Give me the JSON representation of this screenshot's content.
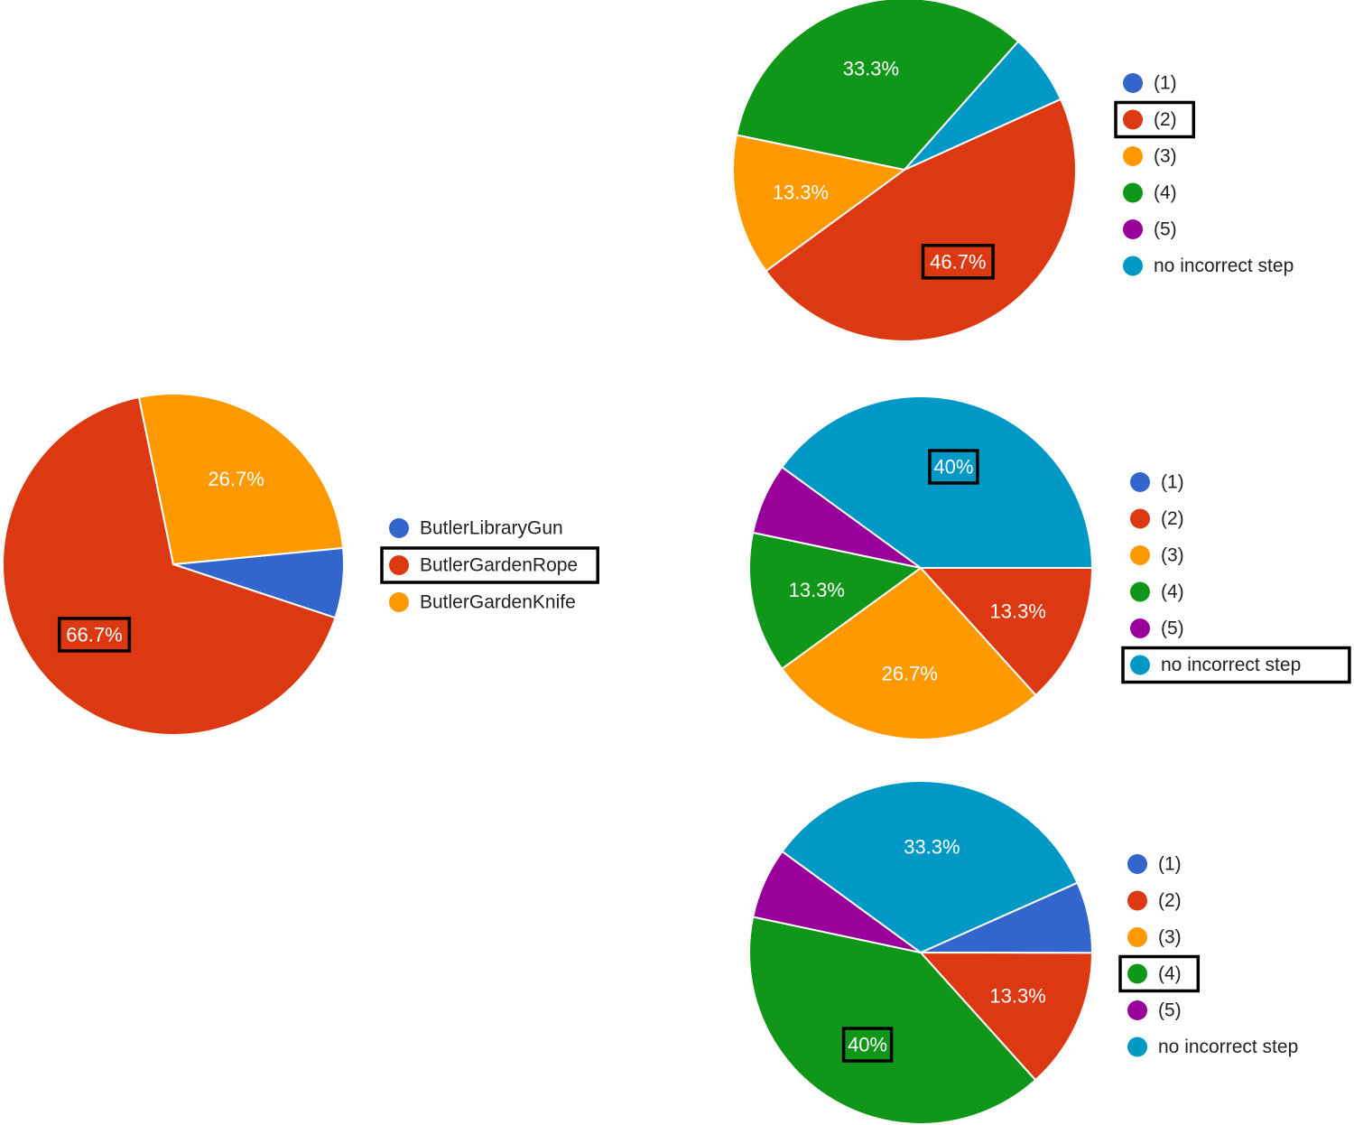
{
  "colors": {
    "blue": "#3366cc",
    "red": "#dc3912",
    "orange": "#ff9900",
    "green": "#109618",
    "purple": "#990099",
    "teal": "#0099c6",
    "highlight_box": "#000000"
  },
  "chart_data": [
    {
      "type": "pie",
      "series": [
        {
          "name": "ButlerLibraryGun",
          "value": 6.6,
          "color": "#3366cc",
          "label": ""
        },
        {
          "name": "ButlerGardenRope",
          "value": 66.7,
          "color": "#dc3912",
          "label": "66.7%",
          "highlighted": true
        },
        {
          "name": "ButlerGardenKnife",
          "value": 26.7,
          "color": "#ff9900",
          "label": "26.7%"
        }
      ],
      "legend": "right",
      "highlighted_legend": "ButlerGardenRope"
    },
    {
      "type": "pie",
      "series": [
        {
          "name": "(1)",
          "value": 0,
          "color": "#3366cc",
          "label": ""
        },
        {
          "name": "(2)",
          "value": 46.7,
          "color": "#dc3912",
          "label": "46.7%",
          "highlighted": true
        },
        {
          "name": "(3)",
          "value": 13.3,
          "color": "#ff9900",
          "label": "13.3%"
        },
        {
          "name": "(4)",
          "value": 33.3,
          "color": "#109618",
          "label": "33.3%"
        },
        {
          "name": "(5)",
          "value": 0,
          "color": "#990099",
          "label": ""
        },
        {
          "name": "no incorrect step",
          "value": 6.7,
          "color": "#0099c6",
          "label": ""
        }
      ],
      "legend": "right",
      "highlighted_legend": "(2)"
    },
    {
      "type": "pie",
      "series": [
        {
          "name": "(1)",
          "value": 0,
          "color": "#3366cc",
          "label": ""
        },
        {
          "name": "(2)",
          "value": 13.3,
          "color": "#dc3912",
          "label": "13.3%"
        },
        {
          "name": "(3)",
          "value": 26.7,
          "color": "#ff9900",
          "label": "26.7%"
        },
        {
          "name": "(4)",
          "value": 13.3,
          "color": "#109618",
          "label": "13.3%"
        },
        {
          "name": "(5)",
          "value": 6.7,
          "color": "#990099",
          "label": ""
        },
        {
          "name": "no incorrect step",
          "value": 40,
          "color": "#0099c6",
          "label": "40%",
          "highlighted": true
        }
      ],
      "legend": "right",
      "highlighted_legend": "no incorrect step"
    },
    {
      "type": "pie",
      "series": [
        {
          "name": "(1)",
          "value": 6.7,
          "color": "#3366cc",
          "label": ""
        },
        {
          "name": "(2)",
          "value": 13.3,
          "color": "#dc3912",
          "label": "13.3%"
        },
        {
          "name": "(3)",
          "value": 0,
          "color": "#ff9900",
          "label": ""
        },
        {
          "name": "(4)",
          "value": 40,
          "color": "#109618",
          "label": "40%",
          "highlighted": true
        },
        {
          "name": "(5)",
          "value": 6.7,
          "color": "#990099",
          "label": ""
        },
        {
          "name": "no incorrect step",
          "value": 33.3,
          "color": "#0099c6",
          "label": "33.3%"
        }
      ],
      "legend": "right",
      "highlighted_legend": "(4)"
    }
  ]
}
